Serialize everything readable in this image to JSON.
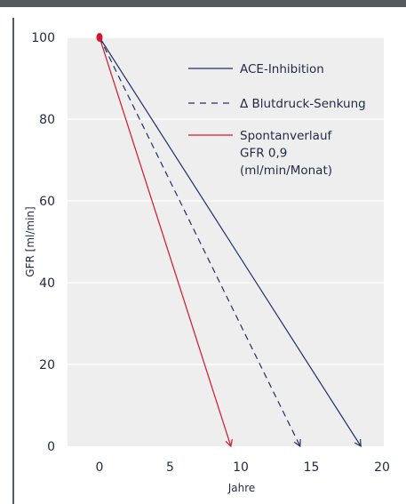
{
  "colors": {
    "plot_background": "#eeeeee",
    "grid": "#ffffff",
    "frame_rule": "#555a60",
    "text": "#1f2a44",
    "ace": "#1f2f6b",
    "bp": "#1f2f6b",
    "spontaneous": "#d6152b"
  },
  "chart_data": {
    "type": "line",
    "xlabel": "Jahre",
    "ylabel": "GFR [ml/min]",
    "xlim": [
      0,
      20
    ],
    "ylim": [
      0,
      100
    ],
    "xticks": [
      "0",
      "5",
      "10",
      "15",
      "20"
    ],
    "yticks": [
      "0",
      "20",
      "40",
      "60",
      "80",
      "100"
    ],
    "grid": true,
    "legend_position": "top-right",
    "series": [
      {
        "name": "ACE-Inhibition",
        "style": "solid",
        "color": "#1f2f6b",
        "x": [
          0,
          18.5
        ],
        "y": [
          100,
          0
        ],
        "end_marker": "arrow"
      },
      {
        "name": "Δ Blutdruck-Senkung",
        "style": "dashed",
        "color": "#1f2f6b",
        "x": [
          0,
          14.2
        ],
        "y": [
          100,
          0
        ],
        "end_marker": "arrow"
      },
      {
        "name_lines": [
          "Spontanverlauf",
          "GFR 0,9",
          "(ml/min/Monat)"
        ],
        "style": "solid",
        "color": "#d6152b",
        "x": [
          0,
          9.3
        ],
        "y": [
          100,
          0
        ],
        "end_marker": "arrow"
      }
    ],
    "start_marker": {
      "x": 0,
      "y": 100,
      "color": "#d6152b"
    }
  }
}
